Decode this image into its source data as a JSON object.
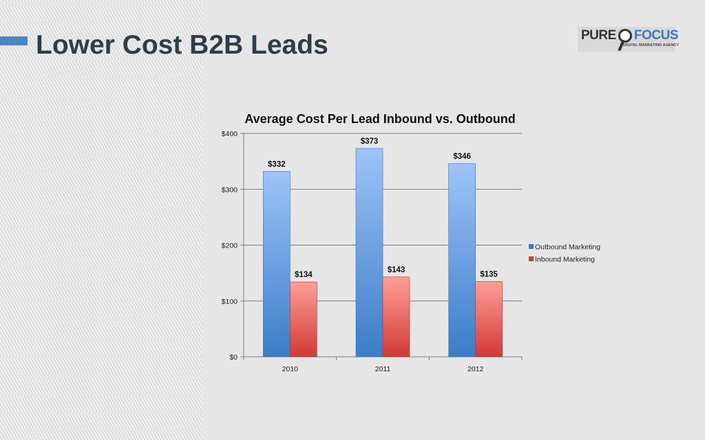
{
  "slide": {
    "title": "Lower Cost B2B Leads"
  },
  "logo": {
    "word1": "PURE",
    "word2": "FOCUS",
    "tagline": "DIGITAL MARKETING AGENCY"
  },
  "colors": {
    "accent": "#4a86c8",
    "title_text": "#2f3d46",
    "outbound_top": "#9ec3f7",
    "outbound_bottom": "#3a7dc9",
    "inbound_top": "#ff9e97",
    "inbound_bottom": "#d23a35"
  },
  "chart_data": {
    "type": "bar",
    "title": "Average Cost Per Lead Inbound vs. Outbound",
    "xlabel": "",
    "ylabel": "",
    "categories": [
      "2010",
      "2011",
      "2012"
    ],
    "series": [
      {
        "name": "Outbound Marketing",
        "values": [
          332,
          373,
          346
        ],
        "labels": [
          "$332",
          "$373",
          "$346"
        ]
      },
      {
        "name": "Inbound Marketing",
        "values": [
          134,
          143,
          135
        ],
        "labels": [
          "$134",
          "$143",
          "$135"
        ]
      }
    ],
    "ylim": [
      0,
      400
    ],
    "yticks": [
      0,
      100,
      200,
      300,
      400
    ],
    "ytick_labels": [
      "$0",
      "$100",
      "$200",
      "$300",
      "$400"
    ],
    "grid": true,
    "legend": "right"
  }
}
